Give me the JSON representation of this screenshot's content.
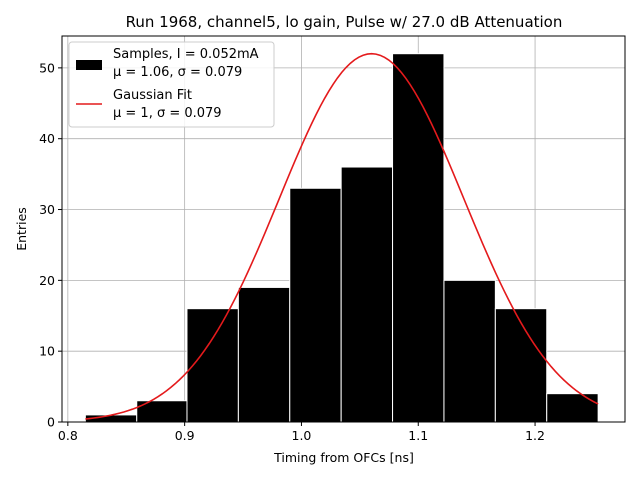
{
  "chart_data": {
    "type": "bar",
    "title": "Run 1968, channel5, lo gain, Pulse w/ 27.0 dB Attenuation",
    "xlabel": "Timing from OFCs [ns]",
    "ylabel": "Entries",
    "xlim": [
      0.795,
      1.277
    ],
    "ylim": [
      0,
      54.5
    ],
    "xticks": [
      0.8,
      0.9,
      1.0,
      1.1,
      1.2
    ],
    "xtick_labels": [
      "0.8",
      "0.9",
      "1.0",
      "1.1",
      "1.2"
    ],
    "yticks": [
      0,
      10,
      20,
      30,
      40,
      50
    ],
    "ytick_labels": [
      "0",
      "10",
      "20",
      "30",
      "40",
      "50"
    ],
    "grid": true,
    "legend_position": "top-left",
    "bins": [
      {
        "x0": 0.815,
        "x1": 0.859,
        "count": 1
      },
      {
        "x0": 0.859,
        "x1": 0.902,
        "count": 3
      },
      {
        "x0": 0.902,
        "x1": 0.946,
        "count": 16
      },
      {
        "x0": 0.946,
        "x1": 0.99,
        "count": 19
      },
      {
        "x0": 0.99,
        "x1": 1.034,
        "count": 33
      },
      {
        "x0": 1.034,
        "x1": 1.078,
        "count": 36
      },
      {
        "x0": 1.078,
        "x1": 1.122,
        "count": 52
      },
      {
        "x0": 1.122,
        "x1": 1.166,
        "count": 20
      },
      {
        "x0": 1.166,
        "x1": 1.21,
        "count": 16
      },
      {
        "x0": 1.21,
        "x1": 1.254,
        "count": 4
      }
    ],
    "fit": {
      "amplitude": 52,
      "mean": 1.06,
      "sigma": 0.079,
      "x_range": [
        0.815,
        1.254
      ]
    },
    "series": [
      {
        "name": "Samples, I = 0.052mA",
        "detail": "μ = 1.06, σ = 0.079",
        "color": "#000000"
      },
      {
        "name": "Gaussian Fit",
        "detail": "μ = 1, σ = 0.079",
        "color": "#e41a1c"
      }
    ]
  }
}
